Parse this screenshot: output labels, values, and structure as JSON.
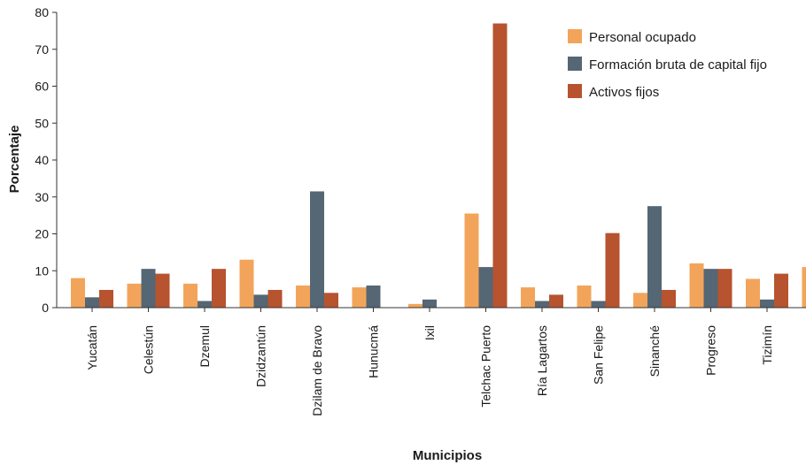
{
  "chart_data": {
    "type": "bar",
    "xlabel": "Municipios",
    "ylabel": "Porcentaje",
    "ylim": [
      0,
      80
    ],
    "yticks": [
      0,
      10,
      20,
      30,
      40,
      50,
      60,
      70,
      80
    ],
    "grid": false,
    "legend_position": "top-right",
    "categories": [
      "Yucatán",
      "Celestún",
      "Dzemul",
      "Dzidzantún",
      "Dzilam de Bravo",
      "Hunucmá",
      "Ixil",
      "Telchac Puerto",
      "Ría Lagartos",
      "San Felipe",
      "Sinanché",
      "Progreso",
      "Tizimín",
      ""
    ],
    "series": [
      {
        "name": "Personal ocupado",
        "color": "#f2a55a",
        "values": [
          8,
          6.5,
          6.5,
          13,
          6,
          5.5,
          1,
          25.5,
          5.5,
          6,
          4,
          12,
          7.8,
          11
        ]
      },
      {
        "name": "Formación bruta de capital fijo",
        "color": "#556674",
        "values": [
          2.8,
          10.5,
          1.8,
          3.5,
          31.5,
          6,
          2.2,
          11,
          1.8,
          1.8,
          27.5,
          10.5,
          2.2,
          null
        ]
      },
      {
        "name": "Activos fijos",
        "color": "#b7532f",
        "values": [
          4.8,
          9.2,
          10.5,
          4.8,
          4,
          null,
          null,
          77,
          3.5,
          20.2,
          4.8,
          10.5,
          9.2,
          null
        ]
      }
    ]
  }
}
